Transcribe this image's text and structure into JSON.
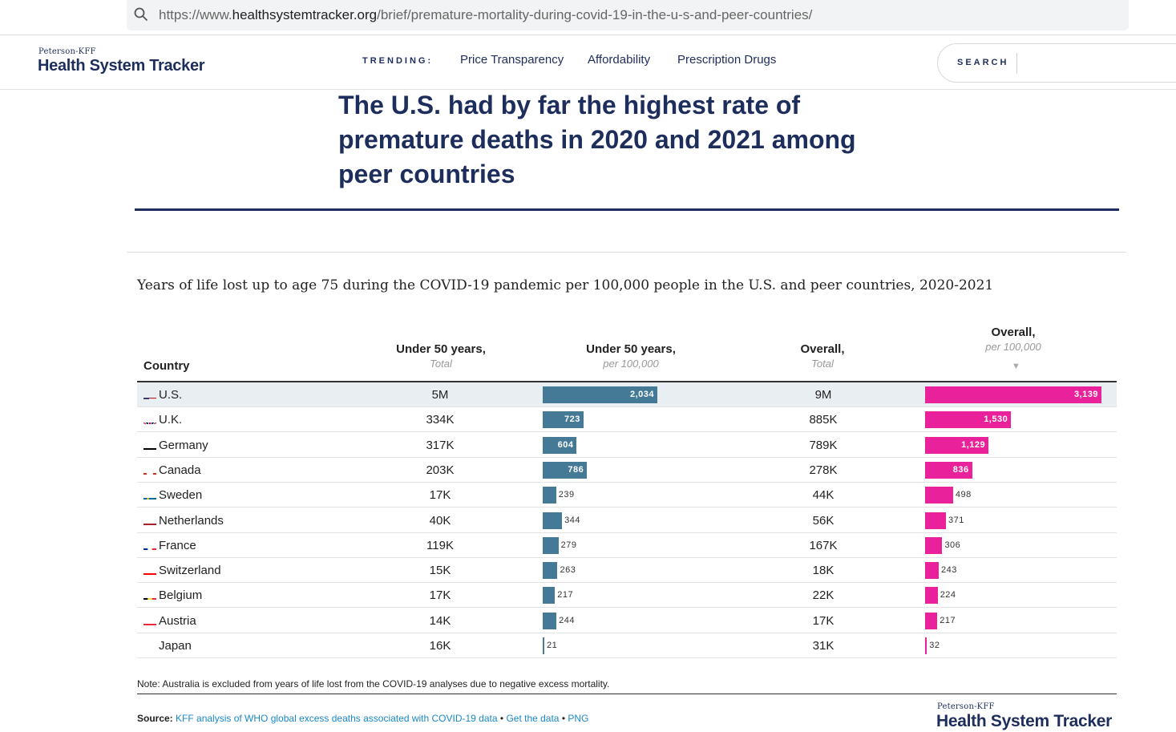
{
  "browser": {
    "url_domain_prefix": "https://www.",
    "url_domain": "healthsystemtracker.org",
    "url_path": "/brief/premature-mortality-during-covid-19-in-the-u-s-and-peer-countries/"
  },
  "header": {
    "logo_small": "Peterson-KFF",
    "logo_big": "Health System Tracker",
    "trending_label": "TRENDING:",
    "nav": [
      "Price Transparency",
      "Affordability",
      "Prescription Drugs"
    ],
    "search_label": "SEARCH"
  },
  "article": {
    "headline": "The U.S. had by far the highest rate of premature deaths in 2020 and 2021 among peer countries"
  },
  "chart_data": {
    "type": "table",
    "title": "Years of life lost up to age 75 during the COVID-19 pandemic per 100,000 people in the U.S. and peer countries, 2020-2021",
    "columns": {
      "country": "Country",
      "u50_total": {
        "label": "Under 50 years,",
        "sub": "Total"
      },
      "u50_rate": {
        "label": "Under 50 years,",
        "sub": "per 100,000"
      },
      "overall_total": {
        "label": "Overall,",
        "sub": "Total"
      },
      "overall_rate": {
        "label": "Overall,",
        "sub": "per 100,000"
      }
    },
    "sort_indicator": "▼",
    "rows": [
      {
        "country": "U.S.",
        "flag": "us",
        "u50_total": "5M",
        "u50_rate": 2034,
        "u50_rate_label": "2,034",
        "overall_total": "9M",
        "overall_rate": 3139,
        "overall_rate_label": "3,139"
      },
      {
        "country": "U.K.",
        "flag": "uk",
        "u50_total": "334K",
        "u50_rate": 723,
        "u50_rate_label": "723",
        "overall_total": "885K",
        "overall_rate": 1530,
        "overall_rate_label": "1,530"
      },
      {
        "country": "Germany",
        "flag": "de",
        "u50_total": "317K",
        "u50_rate": 604,
        "u50_rate_label": "604",
        "overall_total": "789K",
        "overall_rate": 1129,
        "overall_rate_label": "1,129"
      },
      {
        "country": "Canada",
        "flag": "ca",
        "u50_total": "203K",
        "u50_rate": 786,
        "u50_rate_label": "786",
        "overall_total": "278K",
        "overall_rate": 836,
        "overall_rate_label": "836"
      },
      {
        "country": "Sweden",
        "flag": "se",
        "u50_total": "17K",
        "u50_rate": 239,
        "u50_rate_label": "239",
        "overall_total": "44K",
        "overall_rate": 498,
        "overall_rate_label": "498"
      },
      {
        "country": "Netherlands",
        "flag": "nl",
        "u50_total": "40K",
        "u50_rate": 344,
        "u50_rate_label": "344",
        "overall_total": "56K",
        "overall_rate": 371,
        "overall_rate_label": "371"
      },
      {
        "country": "France",
        "flag": "fr",
        "u50_total": "119K",
        "u50_rate": 279,
        "u50_rate_label": "279",
        "overall_total": "167K",
        "overall_rate": 306,
        "overall_rate_label": "306"
      },
      {
        "country": "Switzerland",
        "flag": "ch",
        "u50_total": "15K",
        "u50_rate": 263,
        "u50_rate_label": "263",
        "overall_total": "18K",
        "overall_rate": 243,
        "overall_rate_label": "243"
      },
      {
        "country": "Belgium",
        "flag": "be",
        "u50_total": "17K",
        "u50_rate": 217,
        "u50_rate_label": "217",
        "overall_total": "22K",
        "overall_rate": 224,
        "overall_rate_label": "224"
      },
      {
        "country": "Austria",
        "flag": "at",
        "u50_total": "14K",
        "u50_rate": 244,
        "u50_rate_label": "244",
        "overall_total": "17K",
        "overall_rate": 217,
        "overall_rate_label": "217"
      },
      {
        "country": "Japan",
        "flag": "jp",
        "u50_total": "16K",
        "u50_rate": 21,
        "u50_rate_label": "21",
        "overall_total": "31K",
        "overall_rate": 32,
        "overall_rate_label": "32"
      }
    ],
    "colors": {
      "u50_bar": "#457a96",
      "overall_bar": "#e9219a",
      "highlight_row": "#e9eef3"
    }
  },
  "footer": {
    "note": "Note: Australia is excluded from years of life lost from the COVID-19 analyses due to negative excess mortality.",
    "source_label": "Source:",
    "source_link": "KFF analysis of WHO global excess deaths associated with COVID-19 data",
    "sep1": "•",
    "get_data": "Get the data",
    "sep2": "•",
    "png": "PNG",
    "logo_small": "Peterson-KFF",
    "logo_big": "Health System Tracker"
  }
}
